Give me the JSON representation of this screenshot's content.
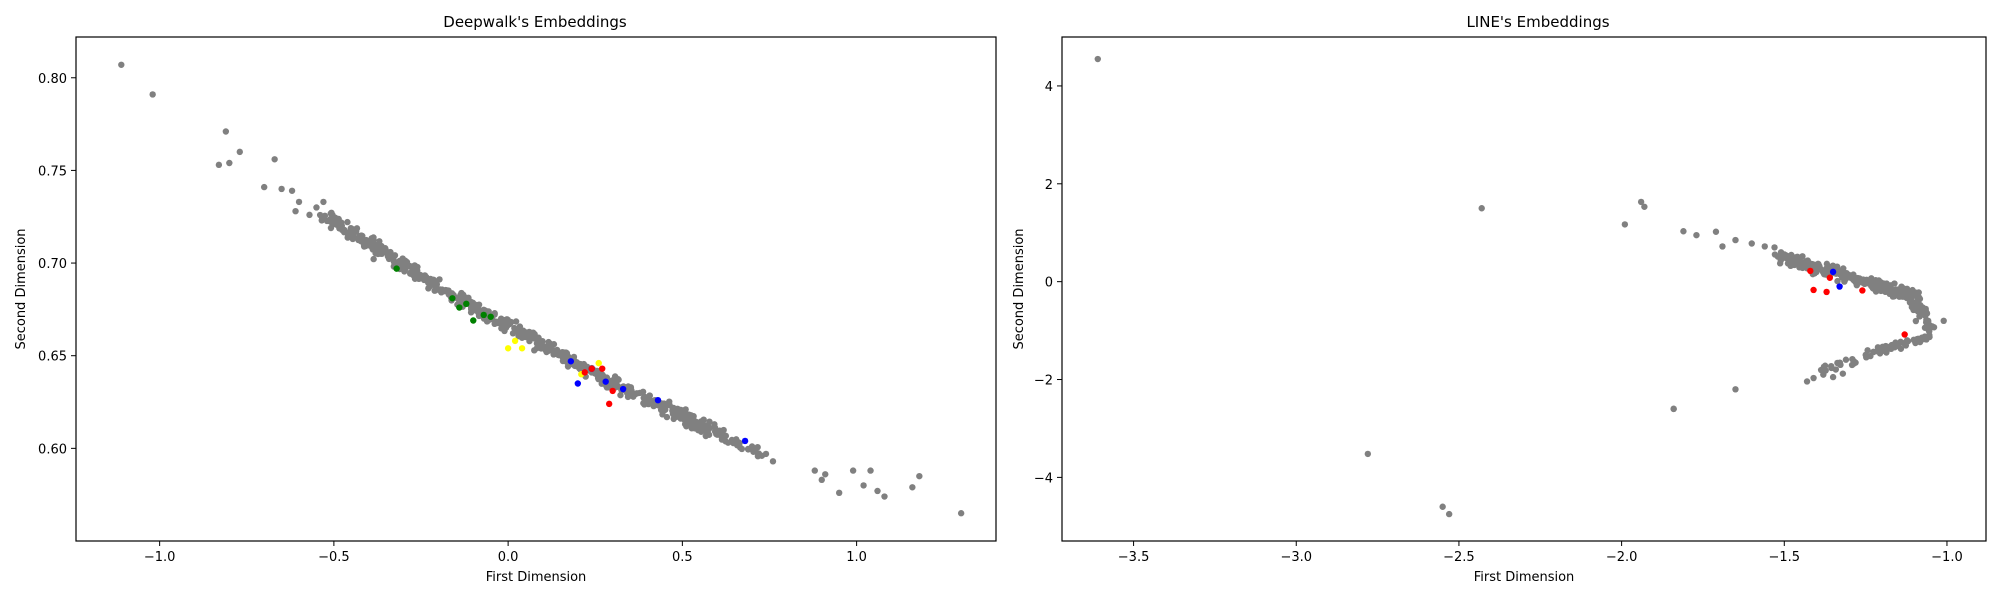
{
  "chart_data": [
    {
      "type": "scatter",
      "title": "Deepwalk's Embeddings",
      "xlabel": "First Dimension",
      "ylabel": "Second Dimension",
      "xlim": [
        -1.24,
        1.4
      ],
      "ylim": [
        0.55,
        0.822
      ],
      "xticks": [
        -1.0,
        -0.5,
        0.0,
        0.5,
        1.0
      ],
      "yticks": [
        0.6,
        0.65,
        0.7,
        0.75,
        0.8
      ],
      "xtick_labels": [
        "−1.0",
        "−0.5",
        "0.0",
        "0.5",
        "1.0"
      ],
      "ytick_labels": [
        "0.60",
        "0.65",
        "0.70",
        "0.75",
        "0.80"
      ],
      "grid": false,
      "background_cloud": {
        "color": "#808080",
        "segments": [
          {
            "x_from": -0.52,
            "y_from": 0.725,
            "x_to": -0.2,
            "y_to": 0.687,
            "count": 170,
            "spread_x": 0.045,
            "spread_y": 0.004
          },
          {
            "x_from": -0.2,
            "y_from": 0.687,
            "x_to": 0.2,
            "y_to": 0.645,
            "count": 220,
            "spread_x": 0.045,
            "spread_y": 0.004
          },
          {
            "x_from": 0.2,
            "y_from": 0.645,
            "x_to": 0.6,
            "y_to": 0.608,
            "count": 200,
            "spread_x": 0.045,
            "spread_y": 0.004
          },
          {
            "x_from": 0.6,
            "y_from": 0.608,
            "x_to": 0.72,
            "y_to": 0.597,
            "count": 25,
            "spread_x": 0.02,
            "spread_y": 0.003
          }
        ]
      },
      "series": [
        {
          "color": "#808080",
          "x": [
            -1.11,
            -1.02,
            -0.81,
            -0.8,
            -0.83,
            -0.77,
            -0.67,
            -0.7,
            -0.65,
            -0.62,
            -0.61,
            -0.6,
            -0.57,
            -0.55,
            -0.53,
            0.88,
            0.9,
            0.91,
            0.95,
            0.99,
            1.02,
            1.04,
            1.06,
            1.08,
            1.16,
            1.18,
            1.3,
            0.65,
            0.7,
            0.74,
            0.76
          ],
          "y": [
            0.807,
            0.791,
            0.771,
            0.754,
            0.753,
            0.76,
            0.756,
            0.741,
            0.74,
            0.739,
            0.728,
            0.733,
            0.726,
            0.73,
            0.733,
            0.588,
            0.583,
            0.586,
            0.576,
            0.588,
            0.58,
            0.588,
            0.577,
            0.574,
            0.579,
            0.585,
            0.565,
            0.604,
            0.601,
            0.597,
            0.593
          ]
        },
        {
          "color": "#008000",
          "x": [
            -0.32,
            -0.16,
            -0.14,
            -0.12,
            -0.1,
            -0.07,
            -0.05
          ],
          "y": [
            0.697,
            0.681,
            0.676,
            0.678,
            0.669,
            0.672,
            0.671
          ]
        },
        {
          "color": "#ffff00",
          "x": [
            0.02,
            0.0,
            0.04,
            0.26,
            0.21
          ],
          "y": [
            0.658,
            0.654,
            0.654,
            0.646,
            0.64
          ]
        },
        {
          "color": "#0000ff",
          "x": [
            0.18,
            0.2,
            0.24,
            0.28,
            0.33,
            0.43,
            0.68
          ],
          "y": [
            0.647,
            0.635,
            0.643,
            0.636,
            0.632,
            0.626,
            0.604
          ]
        },
        {
          "color": "#ff0000",
          "x": [
            0.22,
            0.24,
            0.27,
            0.3,
            0.29
          ],
          "y": [
            0.641,
            0.643,
            0.643,
            0.631,
            0.624
          ]
        }
      ]
    },
    {
      "type": "scatter",
      "title": "LINE's Embeddings",
      "xlabel": "First Dimension",
      "ylabel": "Second Dimension",
      "xlim": [
        -3.72,
        -0.88
      ],
      "ylim": [
        -5.3,
        5.0
      ],
      "xticks": [
        -3.5,
        -3.0,
        -2.5,
        -2.0,
        -1.5,
        -1.0
      ],
      "yticks": [
        -4,
        -2,
        0,
        2,
        4
      ],
      "xtick_labels": [
        "−3.5",
        "−3.0",
        "−2.5",
        "−2.0",
        "−1.5",
        "−1.0"
      ],
      "ytick_labels": [
        "−4",
        "−2",
        "0",
        "2",
        "4"
      ],
      "grid": false,
      "background_cloud": {
        "color": "#808080",
        "segments": [
          {
            "x_from": -1.5,
            "y_from": 0.5,
            "x_to": -1.1,
            "y_to": -0.3,
            "count": 280,
            "spread_x": 0.06,
            "spread_y": 0.16
          },
          {
            "x_from": -1.1,
            "y_from": -0.3,
            "x_to": -1.05,
            "y_to": -1.0,
            "count": 50,
            "spread_x": 0.03,
            "spread_y": 0.12
          },
          {
            "x_from": -1.05,
            "y_from": -1.1,
            "x_to": -1.38,
            "y_to": -1.8,
            "count": 60,
            "spread_x": 0.04,
            "spread_y": 0.1
          }
        ]
      },
      "series": [
        {
          "color": "#808080",
          "x": [
            -3.61,
            -2.43,
            -1.99,
            -1.93,
            -1.94,
            -1.84,
            -1.81,
            -1.77,
            -1.71,
            -1.69,
            -1.65,
            -1.6,
            -1.56,
            -1.53,
            -1.51,
            -2.78,
            -2.55,
            -2.53,
            -1.84,
            -1.65,
            -1.43,
            -1.41,
            -1.38,
            -1.35,
            -1.32,
            -1.01
          ],
          "y": [
            4.55,
            1.5,
            1.17,
            1.53,
            1.63,
            -2.6,
            1.03,
            0.95,
            1.02,
            0.72,
            0.85,
            0.78,
            0.72,
            0.7,
            0.6,
            -3.52,
            -4.6,
            -4.75,
            -2.6,
            -2.2,
            -2.04,
            -1.97,
            -1.9,
            -1.95,
            -1.88,
            -0.8
          ]
        },
        {
          "color": "#ff0000",
          "x": [
            -1.42,
            -1.41,
            -1.37,
            -1.36,
            -1.26,
            -1.13
          ],
          "y": [
            0.22,
            -0.17,
            -0.21,
            0.08,
            -0.18,
            -1.08
          ]
        },
        {
          "color": "#0000ff",
          "x": [
            -1.35,
            -1.33
          ],
          "y": [
            0.2,
            -0.1
          ]
        }
      ]
    }
  ]
}
